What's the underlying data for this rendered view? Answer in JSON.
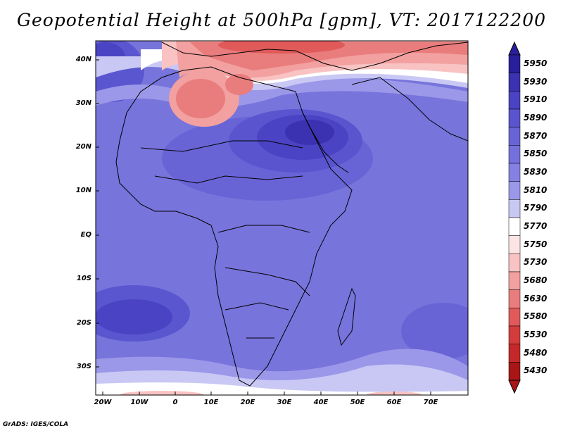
{
  "title": "Geopotential Height at 500hPa [gpm], VT: 2017122200",
  "footer": "GrADS: IGES/COLA",
  "lat_labels": [
    "40N",
    "30N",
    "20N",
    "10N",
    "EQ",
    "10S",
    "20S",
    "30S"
  ],
  "lon_labels": [
    "20W",
    "10W",
    "0",
    "10E",
    "20E",
    "30E",
    "40E",
    "50E",
    "60E",
    "70E"
  ],
  "legend": {
    "levels": [
      "5950",
      "5930",
      "5910",
      "5890",
      "5870",
      "5850",
      "5830",
      "5810",
      "5790",
      "5770",
      "5750",
      "5730",
      "5680",
      "5630",
      "5580",
      "5530",
      "5480",
      "5430"
    ],
    "colors": [
      "#2a1f9a",
      "#3a32b0",
      "#4a43c4",
      "#5a55cf",
      "#6864d6",
      "#7571dc",
      "#8581e2",
      "#9b98e9",
      "#c9c8f4",
      "#ffffff",
      "#fde4e4",
      "#f9c3c3",
      "#f2a0a0",
      "#e97c7c",
      "#e05a5a",
      "#d43c3c",
      "#c52828",
      "#a81616"
    ]
  }
}
